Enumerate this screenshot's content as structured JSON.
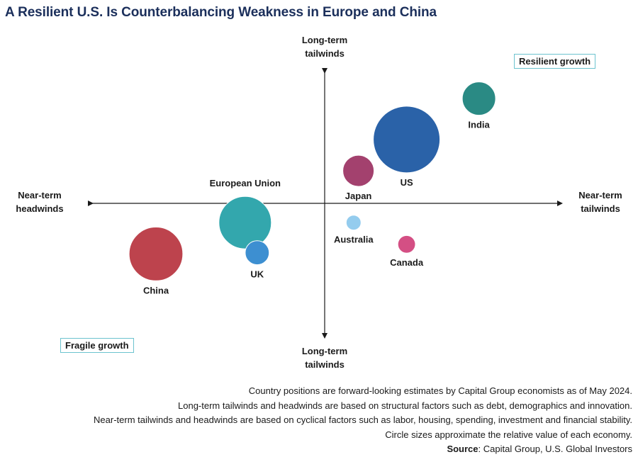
{
  "title": "A Resilient U.S. Is Counterbalancing Weakness in Europe and China",
  "axes": {
    "top": [
      "Long-term",
      "tailwinds"
    ],
    "bottom": [
      "Long-term",
      "tailwinds"
    ],
    "left": [
      "Near-term",
      "headwinds"
    ],
    "right": [
      "Near-term",
      "tailwinds"
    ]
  },
  "quadrants": {
    "top_right": "Resilient growth",
    "bottom_left": "Fragile growth"
  },
  "chart_data": {
    "type": "scatter",
    "title": "A Resilient U.S. Is Counterbalancing Weakness in Europe and China",
    "xlabel": "Near-term headwinds / Near-term tailwinds",
    "ylabel": "Long-term tailwinds",
    "xlim": [
      -1,
      1
    ],
    "ylim": [
      -1,
      1
    ],
    "grid": false,
    "points": [
      {
        "name": "India",
        "x": 0.64,
        "y": 0.87,
        "size": 0.25,
        "color": "#2a8a84"
      },
      {
        "name": "US",
        "x": 0.34,
        "y": 0.53,
        "size": 1.0,
        "color": "#2a62a8"
      },
      {
        "name": "Japan",
        "x": 0.14,
        "y": 0.27,
        "size": 0.22,
        "color": "#a3416e"
      },
      {
        "name": "European Union",
        "x": -0.33,
        "y": -0.16,
        "size": 0.62,
        "color": "#33a7ad"
      },
      {
        "name": "UK",
        "x": -0.28,
        "y": -0.41,
        "size": 0.13,
        "color": "#3d8fd1"
      },
      {
        "name": "China",
        "x": -0.7,
        "y": -0.42,
        "size": 0.65,
        "color": "#bd434d"
      },
      {
        "name": "Australia",
        "x": 0.12,
        "y": -0.16,
        "size": 0.05,
        "color": "#94ccee"
      },
      {
        "name": "Canada",
        "x": 0.34,
        "y": -0.34,
        "size": 0.07,
        "color": "#d44f84"
      }
    ]
  },
  "notes": [
    "Country positions are forward-looking estimates by Capital Group economists as of May 2024.",
    "Long-term tailwinds and headwinds are based on structural factors such as debt, demographics and innovation.",
    "Near-term tailwinds and headwinds are based on cyclical factors such as labor, housing, spending, investment and financial stability.",
    "Circle sizes approximate the relative value of each economy."
  ],
  "source": {
    "label": "Source",
    "text": ": Capital Group, U.S. Global Investors"
  }
}
